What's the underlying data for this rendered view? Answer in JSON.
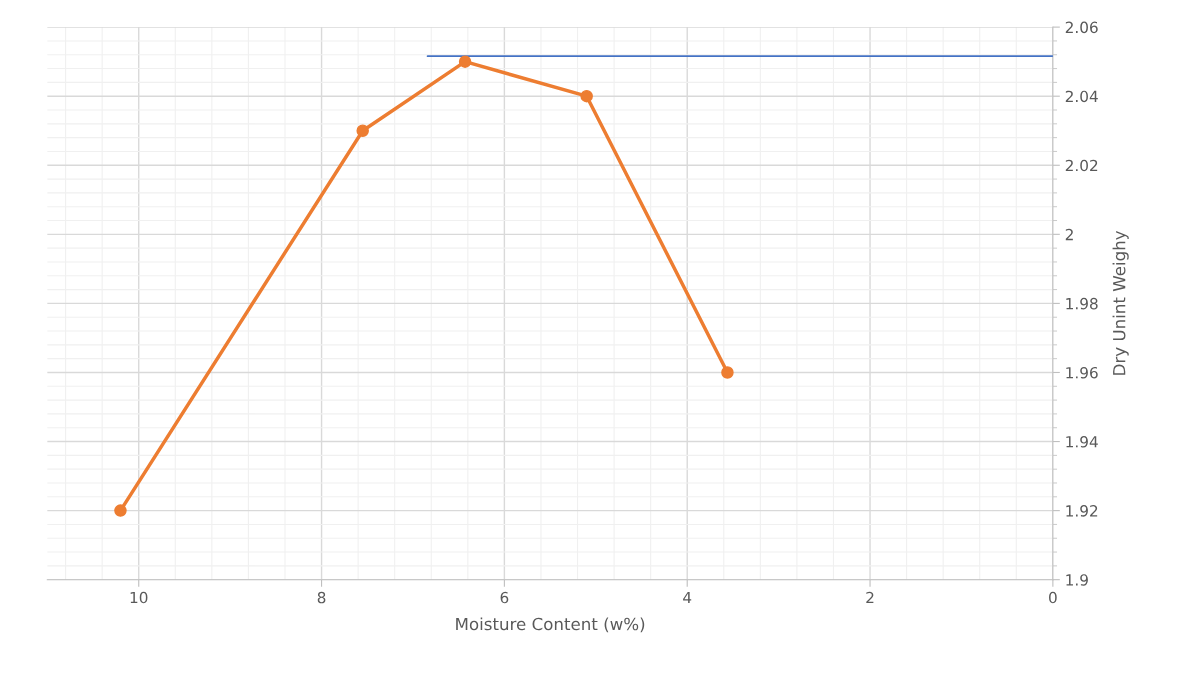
{
  "chart_data": {
    "type": "line",
    "xlabel": "Moisture Content (w%)",
    "ylabel": "Dry Unint Weighy",
    "xlim": [
      11,
      0
    ],
    "xticks": [
      10,
      8,
      6,
      4,
      2,
      0
    ],
    "ylim": [
      1.9,
      2.06
    ],
    "yticks": [
      1.9,
      1.92,
      1.94,
      1.96,
      1.98,
      2,
      2.02,
      2.04,
      2.06
    ],
    "grid": true,
    "marker": "circle",
    "line_style": "solid",
    "series": [
      {
        "color": "#ed7d31",
        "x": [
          10.2,
          7.55,
          6.43,
          5.1,
          3.56
        ],
        "values": [
          1.92,
          2.03,
          2.05,
          2.04,
          1.96
        ]
      },
      {
        "color": "#4472c4",
        "marker": "none",
        "x": [
          6.84,
          0
        ],
        "values": [
          2.0516,
          2.0516
        ]
      }
    ]
  }
}
